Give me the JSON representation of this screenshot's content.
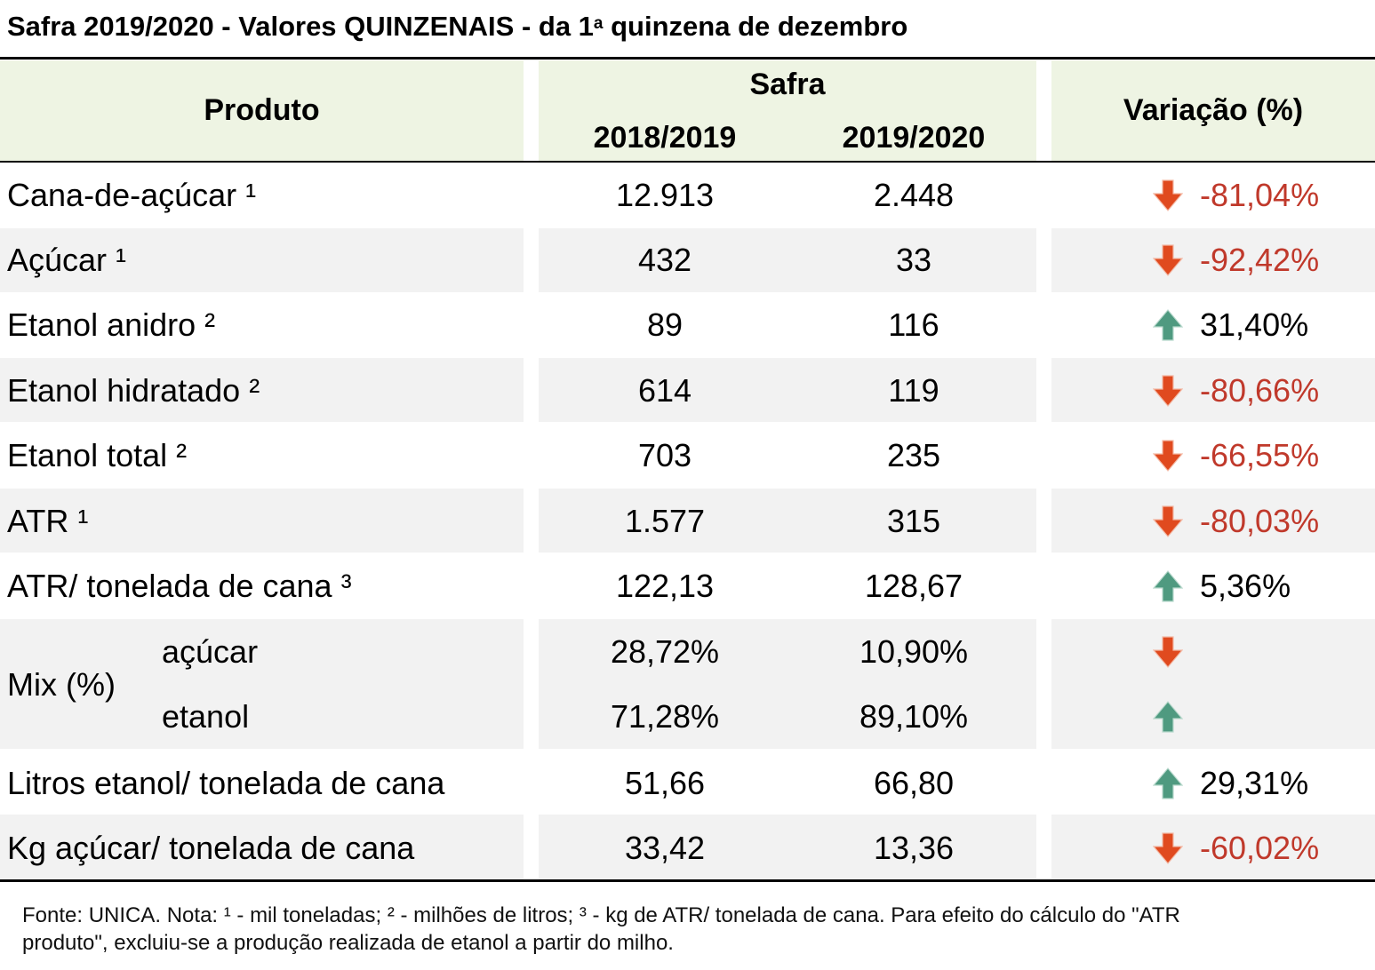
{
  "title": {
    "main": "Safra 2019/2020 - Valores QUINZENAIS - da 1",
    "sup": "a",
    "rest": " quinzena de dezembro"
  },
  "header": {
    "produto": "Produto",
    "safra": "Safra",
    "year_a": "2018/2019",
    "year_b": "2019/2020",
    "variacao": "Variação (%)"
  },
  "rows": [
    {
      "produto": "Cana-de-açúcar ¹",
      "a": "12.913",
      "b": "2.448",
      "dir": "down",
      "var": "-81,04%"
    },
    {
      "produto": "Açúcar ¹",
      "a": "432",
      "b": "33",
      "dir": "down",
      "var": "-92,42%"
    },
    {
      "produto": "Etanol anidro ²",
      "a": "89",
      "b": "116",
      "dir": "up",
      "var": "31,40%"
    },
    {
      "produto": "Etanol hidratado ²",
      "a": "614",
      "b": "119",
      "dir": "down",
      "var": "-80,66%"
    },
    {
      "produto": "Etanol total ²",
      "a": "703",
      "b": "235",
      "dir": "down",
      "var": "-66,55%"
    },
    {
      "produto": "ATR ¹",
      "a": "1.577",
      "b": "315",
      "dir": "down",
      "var": "-80,03%"
    },
    {
      "produto": "ATR/ tonelada de cana ³",
      "a": "122,13",
      "b": "128,67",
      "dir": "up",
      "var": "5,36%"
    }
  ],
  "mix": {
    "label": "Mix (%)",
    "rows": [
      {
        "produto": "açúcar",
        "a": "28,72%",
        "b": "10,90%",
        "dir": "down",
        "var": ""
      },
      {
        "produto": "etanol",
        "a": "71,28%",
        "b": "89,10%",
        "dir": "up",
        "var": ""
      }
    ]
  },
  "rows_after": [
    {
      "produto": "Litros etanol/ tonelada de cana",
      "a": "51,66",
      "b": "66,80",
      "dir": "up",
      "var": "29,31%"
    },
    {
      "produto": "Kg açúcar/ tonelada de cana",
      "a": "33,42",
      "b": "13,36",
      "dir": "down",
      "var": "-60,02%"
    }
  ],
  "footer": {
    "line1": "Fonte: UNICA. Nota: ¹ - mil toneladas; ² - milhões de litros; ³ - kg de ATR/ tonelada de cana. Para efeito do cálculo do \"ATR",
    "line2": "produto\", excluiu-se a produção realizada de etanol a partir do milho."
  },
  "colors": {
    "header_bg": "#eef4e3",
    "stripe_bg": "#f2f2f2",
    "negative_text": "#c0392b",
    "arrow_down": "#e04a1f",
    "arrow_up": "#4f9a80"
  }
}
